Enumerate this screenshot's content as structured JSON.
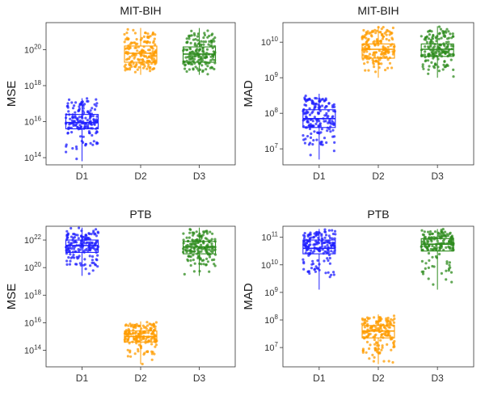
{
  "colors": {
    "D1": "#1f1fff",
    "D2": "#ff9c00",
    "D3": "#2e8b1e"
  },
  "chart_data": [
    {
      "type": "box-jitter",
      "title": "MIT-BIH",
      "ylabel": "MSE",
      "yscale": "log10",
      "ylim_exp": [
        13.6,
        21.5
      ],
      "tick_exps": [
        14,
        16,
        18,
        20
      ],
      "categories": [
        "D1",
        "D2",
        "D3"
      ],
      "series": [
        {
          "name": "D1",
          "min_exp": 13.8,
          "q1_exp": 15.6,
          "median_exp": 15.95,
          "q3_exp": 16.4,
          "max_exp": 17.3
        },
        {
          "name": "D2",
          "min_exp": 18.6,
          "q1_exp": 19.3,
          "median_exp": 19.8,
          "q3_exp": 20.2,
          "max_exp": 21.2
        },
        {
          "name": "D3",
          "min_exp": 18.6,
          "q1_exp": 19.3,
          "median_exp": 19.75,
          "q3_exp": 20.15,
          "max_exp": 21.2
        }
      ]
    },
    {
      "type": "box-jitter",
      "title": "MIT-BIH",
      "ylabel": "MAD",
      "yscale": "log10",
      "ylim_exp": [
        6.55,
        10.55
      ],
      "tick_exps": [
        7,
        8,
        9,
        10
      ],
      "categories": [
        "D1",
        "D2",
        "D3"
      ],
      "series": [
        {
          "name": "D1",
          "min_exp": 6.7,
          "q1_exp": 7.6,
          "median_exp": 7.85,
          "q3_exp": 8.1,
          "max_exp": 8.55
        },
        {
          "name": "D2",
          "min_exp": 9.0,
          "q1_exp": 9.55,
          "median_exp": 9.8,
          "q3_exp": 9.95,
          "max_exp": 10.45
        },
        {
          "name": "D3",
          "min_exp": 9.0,
          "q1_exp": 9.6,
          "median_exp": 9.8,
          "q3_exp": 9.95,
          "max_exp": 10.45
        }
      ]
    },
    {
      "type": "box-jitter",
      "title": "PTB",
      "ylabel": "MSE",
      "yscale": "log10",
      "ylim_exp": [
        12.8,
        23.0
      ],
      "tick_exps": [
        14,
        16,
        18,
        20,
        22
      ],
      "categories": [
        "D1",
        "D2",
        "D3"
      ],
      "series": [
        {
          "name": "D1",
          "min_exp": 19.4,
          "q1_exp": 21.1,
          "median_exp": 21.6,
          "q3_exp": 22.0,
          "max_exp": 22.9
        },
        {
          "name": "D2",
          "min_exp": 13.0,
          "q1_exp": 14.6,
          "median_exp": 15.0,
          "q3_exp": 15.4,
          "max_exp": 16.1
        },
        {
          "name": "D3",
          "min_exp": 19.4,
          "q1_exp": 21.0,
          "median_exp": 21.5,
          "q3_exp": 21.9,
          "max_exp": 22.9
        }
      ]
    },
    {
      "type": "box-jitter",
      "title": "PTB",
      "ylabel": "MAD",
      "yscale": "log10",
      "ylim_exp": [
        6.3,
        11.4
      ],
      "tick_exps": [
        7,
        8,
        9,
        10,
        11
      ],
      "categories": [
        "D1",
        "D2",
        "D3"
      ],
      "series": [
        {
          "name": "D1",
          "min_exp": 9.1,
          "q1_exp": 10.4,
          "median_exp": 10.6,
          "q3_exp": 10.9,
          "max_exp": 11.3
        },
        {
          "name": "D2",
          "min_exp": 6.4,
          "q1_exp": 7.35,
          "median_exp": 7.6,
          "q3_exp": 7.8,
          "max_exp": 8.2
        },
        {
          "name": "D3",
          "min_exp": 9.1,
          "q1_exp": 10.5,
          "median_exp": 10.75,
          "q3_exp": 10.95,
          "max_exp": 11.3
        }
      ]
    }
  ]
}
